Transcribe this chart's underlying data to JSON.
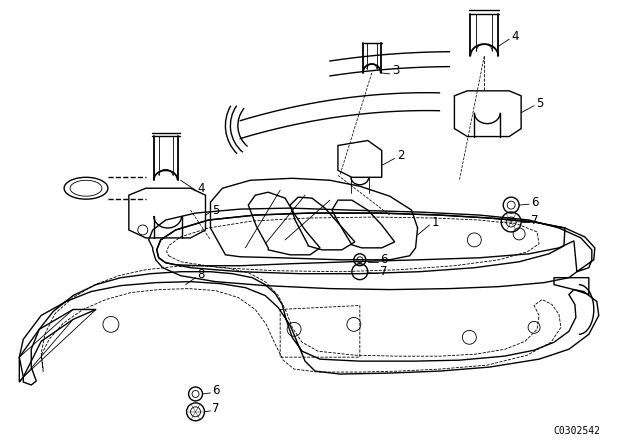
{
  "background_color": "#ffffff",
  "part_code": "C0302542",
  "fig_width": 6.4,
  "fig_height": 4.48,
  "dpi": 100,
  "line_color": "#000000",
  "text_color": "#000000",
  "label_fontsize": 8.5,
  "part_code_fontsize": 7
}
